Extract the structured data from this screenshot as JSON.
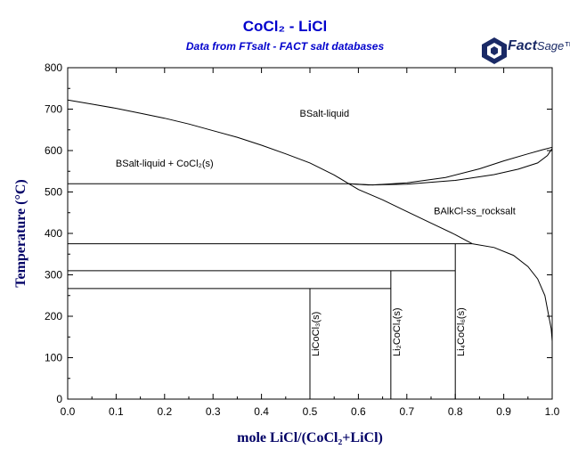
{
  "header": {
    "title": "CoCl₂ - LiCl",
    "subtitle": "Data from FTsalt - FACT salt databases",
    "logo": "FactSage",
    "logo_main": "Fact",
    "logo_sage": "Sage™"
  },
  "chart_data": {
    "type": "line",
    "xlabel": "mole LiCl/(CoCl₂+LiCl)",
    "ylabel": "Temperature (°C)",
    "xlim": [
      0,
      1
    ],
    "ylim": [
      0,
      800
    ],
    "x_ticks": [
      "0.0",
      "0.1",
      "0.2",
      "0.3",
      "0.4",
      "0.5",
      "0.6",
      "0.7",
      "0.8",
      "0.9",
      "1.0"
    ],
    "y_ticks": [
      "0",
      "100",
      "200",
      "300",
      "400",
      "500",
      "600",
      "700",
      "800"
    ],
    "grid": false,
    "liquidus_left": [
      [
        0.0,
        722
      ],
      [
        0.05,
        712
      ],
      [
        0.1,
        702
      ],
      [
        0.15,
        690
      ],
      [
        0.2,
        678
      ],
      [
        0.25,
        664
      ],
      [
        0.3,
        648
      ],
      [
        0.35,
        632
      ],
      [
        0.4,
        613
      ],
      [
        0.45,
        592
      ],
      [
        0.5,
        570
      ],
      [
        0.55,
        541
      ],
      [
        0.58,
        520
      ]
    ],
    "liquidus_right": [
      [
        0.58,
        520
      ],
      [
        0.6,
        506
      ],
      [
        0.65,
        481
      ],
      [
        0.7,
        453
      ],
      [
        0.75,
        425
      ],
      [
        0.8,
        397
      ],
      [
        0.835,
        375
      ]
    ],
    "liquid_lower_boundary": [
      [
        0.58,
        520
      ],
      [
        0.62,
        517
      ],
      [
        0.7,
        519
      ],
      [
        0.8,
        528
      ],
      [
        0.88,
        542
      ],
      [
        0.93,
        555
      ],
      [
        0.97,
        570
      ],
      [
        0.99,
        588
      ],
      [
        1.0,
        605
      ]
    ],
    "liquid_upper_boundary": [
      [
        0.58,
        520
      ],
      [
        0.63,
        517
      ],
      [
        0.7,
        522
      ],
      [
        0.78,
        535
      ],
      [
        0.85,
        556
      ],
      [
        0.9,
        575
      ],
      [
        0.95,
        592
      ],
      [
        0.98,
        602
      ],
      [
        1.0,
        608
      ]
    ],
    "rocksalt_solvus": [
      [
        0.835,
        375
      ],
      [
        0.88,
        366
      ],
      [
        0.92,
        347
      ],
      [
        0.95,
        320
      ],
      [
        0.97,
        290
      ],
      [
        0.985,
        250
      ],
      [
        0.993,
        200
      ],
      [
        0.998,
        170
      ],
      [
        1.0,
        140
      ]
    ],
    "invariant_lines": [
      {
        "T": 520,
        "x_from": 0.0,
        "x_to": 0.58
      },
      {
        "T": 375,
        "x_from": 0.0,
        "x_to": 0.835
      },
      {
        "T": 310,
        "x_from": 0.0,
        "x_to": 0.8
      },
      {
        "T": 267,
        "x_from": 0.0,
        "x_to": 0.667
      }
    ],
    "compound_lines": [
      {
        "x": 0.5,
        "T_top": 267,
        "label": "LiCoCl₃(s)"
      },
      {
        "x": 0.667,
        "T_top": 310,
        "label": "Li₂CoCl₄(s)"
      },
      {
        "x": 0.8,
        "T_top": 375,
        "label": "Li₄CoCl₆(s)"
      }
    ],
    "region_labels": [
      {
        "text": "BSalt-liquid",
        "x": 0.53,
        "T": 690
      },
      {
        "text": "BSalt-liquid + CoCl₂(s)",
        "x": 0.2,
        "T": 570
      },
      {
        "text": "BAlkCl-ss_rocksalt",
        "x": 0.84,
        "T": 455
      }
    ]
  }
}
